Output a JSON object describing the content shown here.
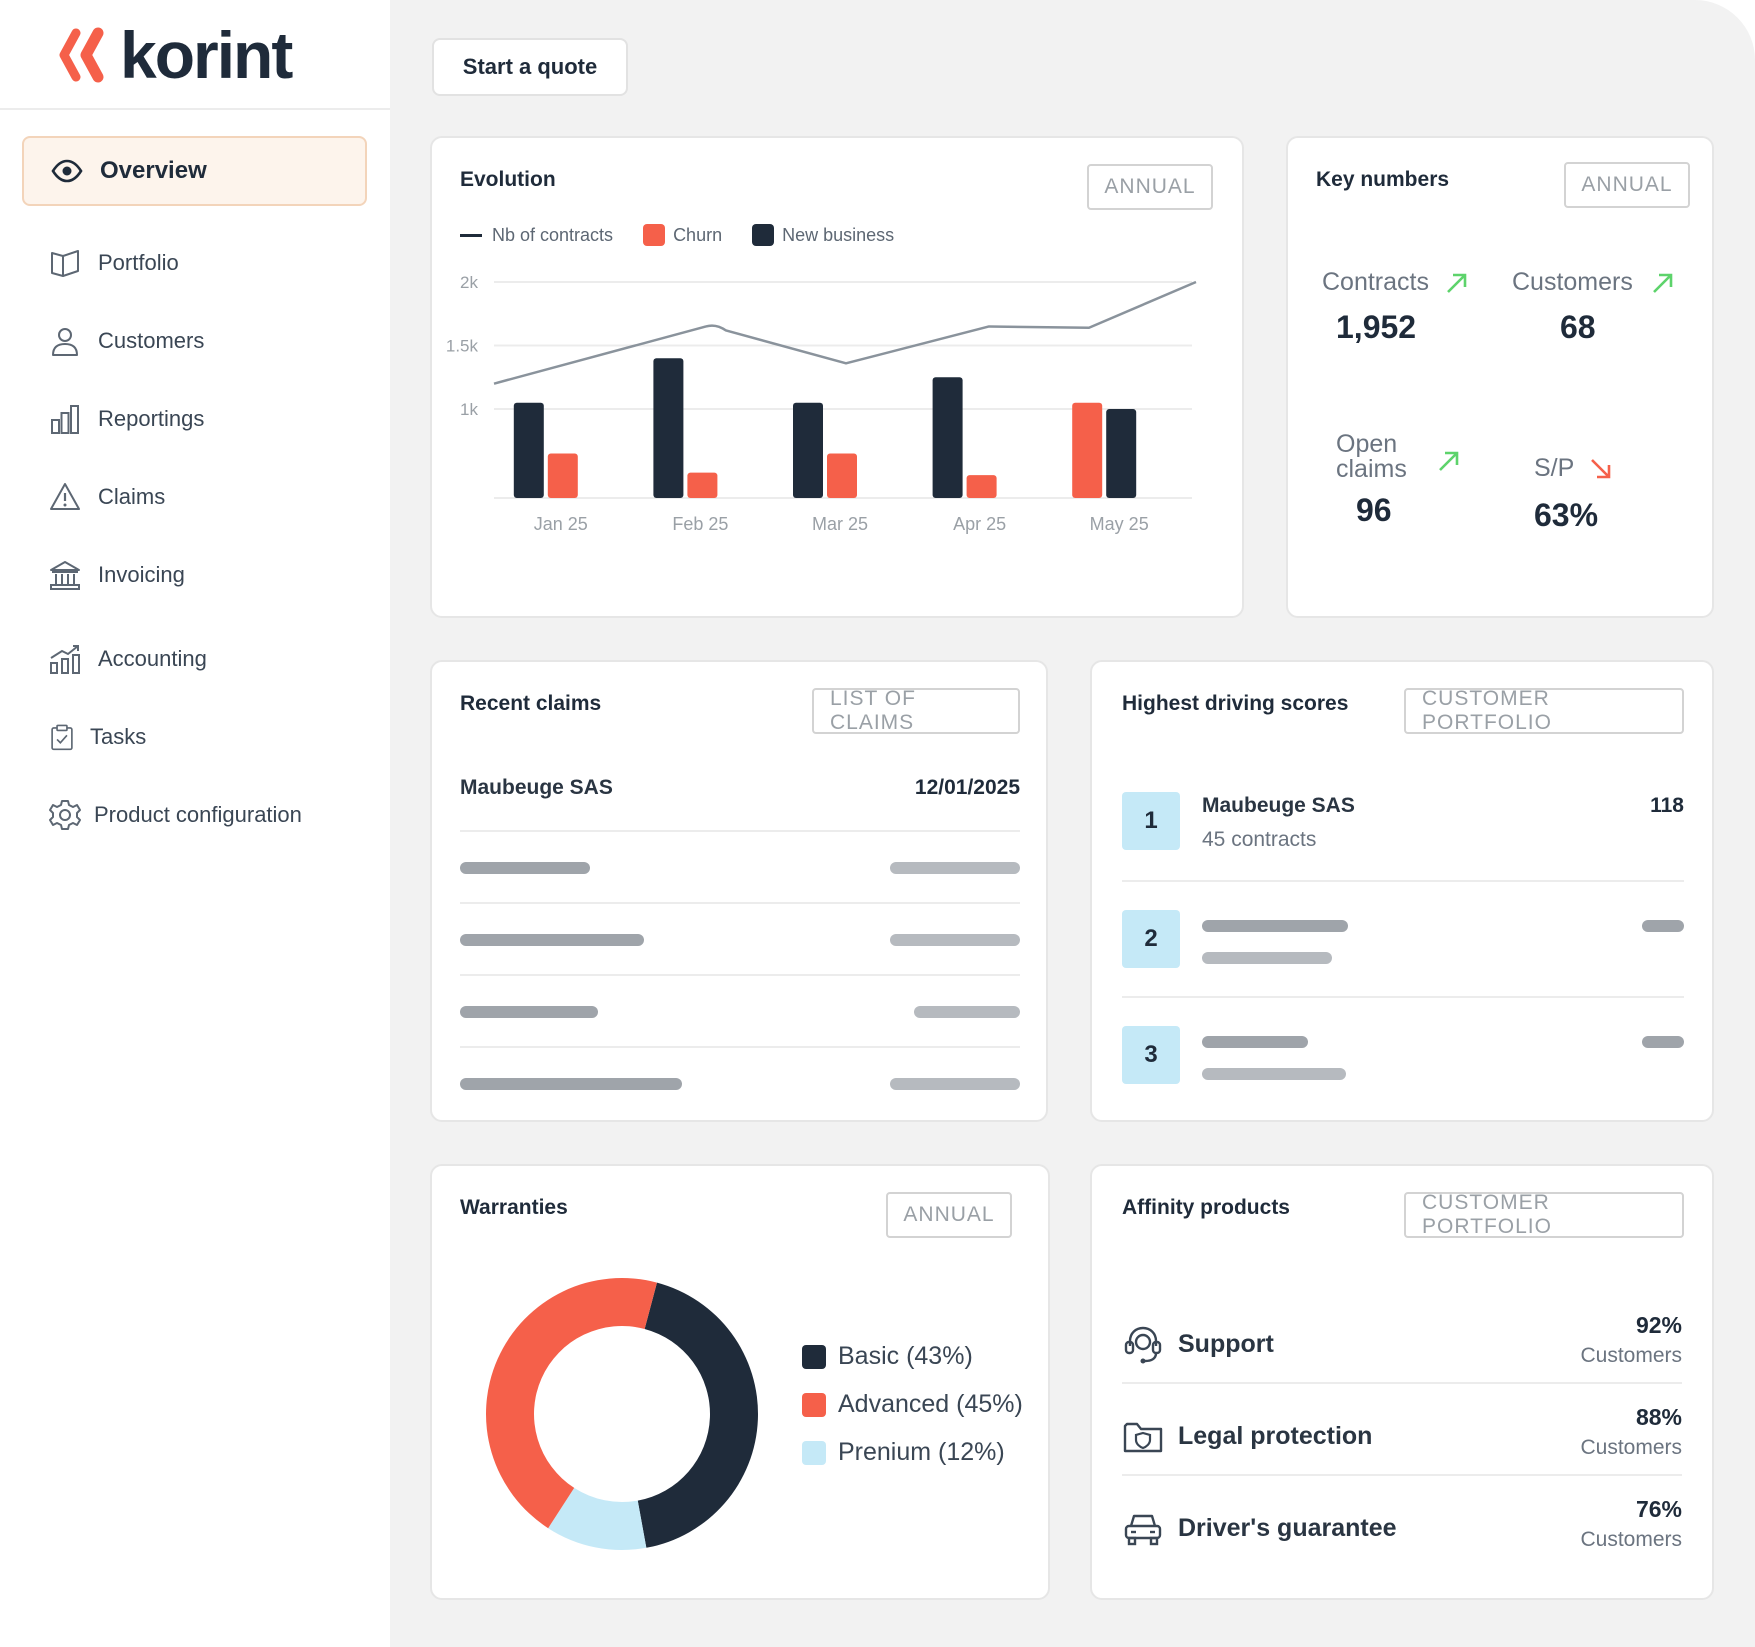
{
  "brand": {
    "name": "korint",
    "accent": "#f5604a",
    "dark": "#1f2b3a"
  },
  "sidebar": {
    "items": [
      {
        "label": "Overview",
        "icon": "eye-icon",
        "active": true
      },
      {
        "label": "Portfolio",
        "icon": "book-icon"
      },
      {
        "label": "Customers",
        "icon": "user-icon"
      },
      {
        "label": "Reportings",
        "icon": "bar-chart-icon"
      },
      {
        "label": "Claims",
        "icon": "warning-icon"
      },
      {
        "label": "Invoicing",
        "icon": "bank-icon"
      },
      {
        "label": "Accounting",
        "icon": "growth-chart-icon"
      },
      {
        "label": "Tasks",
        "icon": "clipboard-check-icon"
      },
      {
        "label": "Product configuration",
        "icon": "gear-icon"
      }
    ]
  },
  "header": {
    "quote_button": "Start a quote"
  },
  "evolution": {
    "title": "Evolution",
    "tag": "ANNUAL",
    "legend": {
      "line": "Nb of contracts",
      "churn": "Churn",
      "new": "New business"
    }
  },
  "chart_data": {
    "type": "bar",
    "title": "Evolution",
    "categories": [
      "Jan 25",
      "Feb 25",
      "Mar 25",
      "Apr 25",
      "May 25"
    ],
    "series": [
      {
        "name": "New business",
        "kind": "bar",
        "color": "#1f2b3a",
        "values": [
          1050,
          1400,
          1050,
          1250,
          1000
        ]
      },
      {
        "name": "Churn",
        "kind": "bar",
        "color": "#f5604a",
        "values": [
          650,
          500,
          650,
          480,
          1050
        ]
      },
      {
        "name": "Nb of contracts",
        "kind": "line",
        "color": "#6b7480",
        "values": [
          1200,
          1650,
          1360,
          1650,
          2000
        ]
      }
    ],
    "yticks": [
      "2k",
      "1.5k",
      "1k"
    ],
    "ytick_values": [
      2000,
      1500,
      1000
    ],
    "ylim": [
      300,
      2000
    ]
  },
  "key_numbers": {
    "title": "Key numbers",
    "tag": "ANNUAL",
    "contracts": {
      "label": "Contracts",
      "value": "1,952",
      "trend": "up"
    },
    "customers": {
      "label": "Customers",
      "value": "68",
      "trend": "up"
    },
    "open_claims": {
      "label1": "Open",
      "label2": "claims",
      "value": "96",
      "trend": "up"
    },
    "sp": {
      "label": "S/P",
      "value": "63%",
      "trend": "down"
    }
  },
  "recent_claims": {
    "title": "Recent claims",
    "tag": "LIST OF CLAIMS",
    "first": {
      "name": "Maubeuge SAS",
      "date": "12/01/2025"
    }
  },
  "driving_scores": {
    "title": "Highest driving scores",
    "tag": "CUSTOMER PORTFOLIO",
    "ranks": [
      "1",
      "2",
      "3"
    ],
    "first": {
      "name": "Maubeuge SAS",
      "sub": "45 contracts",
      "score": "118"
    }
  },
  "warranties": {
    "title": "Warranties",
    "tag": "ANNUAL",
    "items": [
      {
        "label": "Basic (43%)",
        "pct": 43,
        "color": "#1f2b3a"
      },
      {
        "label": "Advanced (45%)",
        "pct": 45,
        "color": "#f5604a"
      },
      {
        "label": "Prenium (12%)",
        "pct": 12,
        "color": "#c5e9f7"
      }
    ]
  },
  "affinity": {
    "title": "Affinity products",
    "tag": "CUSTOMER PORTFOLIO",
    "items": [
      {
        "name": "Support",
        "pct": "92%",
        "sub": "Customers",
        "icon": "headset-icon"
      },
      {
        "name": "Legal protection",
        "pct": "88%",
        "sub": "Customers",
        "icon": "folder-shield-icon"
      },
      {
        "name": "Driver's guarantee",
        "pct": "76%",
        "sub": "Customers",
        "icon": "car-icon"
      }
    ]
  }
}
